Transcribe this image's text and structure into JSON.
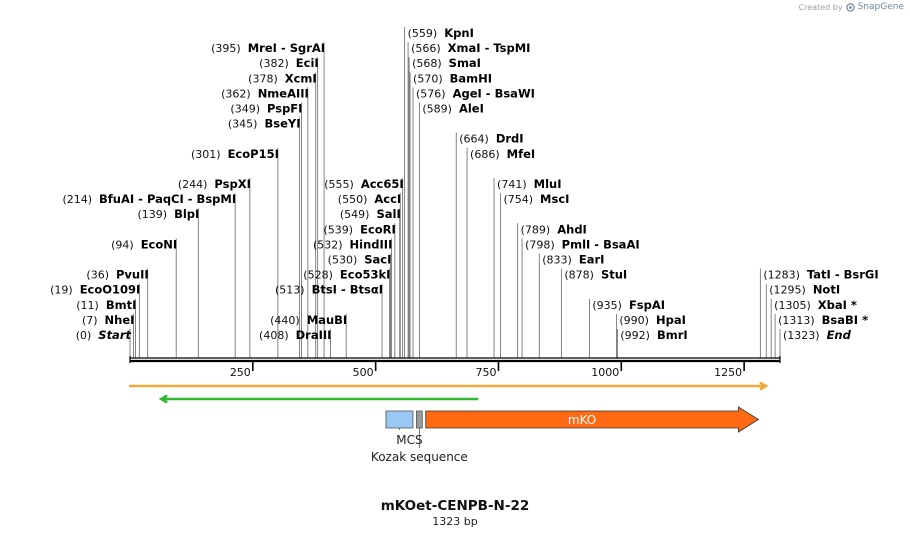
{
  "header": {
    "credit_prefix": "Created by",
    "credit_brand": "SnapGene"
  },
  "sequence": {
    "name": "mKOet-CENPB-N-22",
    "length_label": "1323 bp",
    "length_bp": 1323
  },
  "ruler": {
    "ticks": [
      250,
      500,
      750,
      1000,
      1250
    ]
  },
  "enzymes": [
    {
      "row": 0,
      "align": "right",
      "pos": "(0)",
      "name": "Start",
      "italic": true,
      "site": 0
    },
    {
      "row": 1,
      "align": "right",
      "pos": "(7)",
      "name": "NheI",
      "site": 7
    },
    {
      "row": 2,
      "align": "right",
      "pos": "(11)",
      "name": "BmtI",
      "site": 11
    },
    {
      "row": 3,
      "align": "right",
      "pos": "(19)",
      "name": "EcoO109I",
      "site": 19
    },
    {
      "row": 4,
      "align": "right",
      "pos": "(36)",
      "name": "PvuII",
      "site": 36
    },
    {
      "row": 6,
      "align": "right",
      "pos": "(94)",
      "name": "EcoNI",
      "site": 94
    },
    {
      "row": 8,
      "align": "right",
      "pos": "(139)",
      "name": "BlpI",
      "site": 139
    },
    {
      "row": 9,
      "align": "right",
      "pos": "(214)",
      "name": "BfuAI - PaqCI - BspMI",
      "site": 214
    },
    {
      "row": 10,
      "align": "right",
      "pos": "(244)",
      "name": "PspXI",
      "site": 244
    },
    {
      "row": 12,
      "align": "right",
      "pos": "(301)",
      "name": "EcoP15I",
      "site": 301
    },
    {
      "row": 0,
      "align": "right",
      "pos": "(408)",
      "name": "DraIII",
      "site": 408
    },
    {
      "row": 1,
      "align": "right",
      "pos": "(440)",
      "name": "MauBI",
      "site": 440
    },
    {
      "row": 3,
      "align": "right",
      "pos": "(513)",
      "name": "BtsI - BtsαI",
      "site": 513
    },
    {
      "row": 4,
      "align": "right",
      "pos": "(528)",
      "name": "Eco53kI",
      "site": 528
    },
    {
      "row": 5,
      "align": "right",
      "pos": "(530)",
      "name": "SacI",
      "site": 530
    },
    {
      "row": 6,
      "align": "right",
      "pos": "(532)",
      "name": "HindIII",
      "site": 532
    },
    {
      "row": 7,
      "align": "right",
      "pos": "(539)",
      "name": "EcoRI",
      "site": 539
    },
    {
      "row": 8,
      "align": "right",
      "pos": "(549)",
      "name": "SalI",
      "site": 549
    },
    {
      "row": 9,
      "align": "right",
      "pos": "(550)",
      "name": "AccI",
      "site": 550
    },
    {
      "row": 10,
      "align": "right",
      "pos": "(555)",
      "name": "Acc65I",
      "site": 555
    },
    {
      "row": 14,
      "align": "right",
      "pos": "(345)",
      "name": "BseYI",
      "site": 345
    },
    {
      "row": 15,
      "align": "right",
      "pos": "(349)",
      "name": "PspFI",
      "site": 349
    },
    {
      "row": 16,
      "align": "right",
      "pos": "(362)",
      "name": "NmeAIII",
      "site": 362
    },
    {
      "row": 17,
      "align": "right",
      "pos": "(378)",
      "name": "XcmI",
      "site": 378
    },
    {
      "row": 18,
      "align": "right",
      "pos": "(382)",
      "name": "EciI",
      "site": 382
    },
    {
      "row": 19,
      "align": "right",
      "pos": "(395)",
      "name": "MreI - SgrAI",
      "site": 395
    },
    {
      "row": 20,
      "align": "left",
      "pos": "(559)",
      "name": "KpnI",
      "site": 559
    },
    {
      "row": 19,
      "align": "left",
      "pos": "(566)",
      "name": "XmaI - TspMI",
      "site": 566
    },
    {
      "row": 18,
      "align": "left",
      "pos": "(568)",
      "name": "SmaI",
      "site": 568
    },
    {
      "row": 17,
      "align": "left",
      "pos": "(570)",
      "name": "BamHI",
      "site": 570
    },
    {
      "row": 16,
      "align": "left",
      "pos": "(576)",
      "name": "AgeI - BsaWI",
      "site": 576
    },
    {
      "row": 15,
      "align": "left",
      "pos": "(589)",
      "name": "AleI",
      "site": 589
    },
    {
      "row": 13,
      "align": "left",
      "pos": "(664)",
      "name": "DrdI",
      "site": 664
    },
    {
      "row": 12,
      "align": "left",
      "pos": "(686)",
      "name": "MfeI",
      "site": 686
    },
    {
      "row": 10,
      "align": "left",
      "pos": "(741)",
      "name": "MluI",
      "site": 741
    },
    {
      "row": 9,
      "align": "left",
      "pos": "(754)",
      "name": "MscI",
      "site": 754
    },
    {
      "row": 7,
      "align": "left",
      "pos": "(789)",
      "name": "AhdI",
      "site": 789
    },
    {
      "row": 6,
      "align": "left",
      "pos": "(798)",
      "name": "PmlI - BsaAI",
      "site": 798
    },
    {
      "row": 5,
      "align": "left",
      "pos": "(833)",
      "name": "EarI",
      "site": 833
    },
    {
      "row": 4,
      "align": "left",
      "pos": "(878)",
      "name": "StuI",
      "site": 878
    },
    {
      "row": 2,
      "align": "left",
      "pos": "(935)",
      "name": "FspAI",
      "site": 935
    },
    {
      "row": 1,
      "align": "left",
      "pos": "(990)",
      "name": "HpaI",
      "site": 990
    },
    {
      "row": 0,
      "align": "left",
      "pos": "(992)",
      "name": "BmrI",
      "site": 992
    },
    {
      "row": 4,
      "align": "left",
      "pos": "(1283)",
      "name": "TatI - BsrGI",
      "site": 1283
    },
    {
      "row": 3,
      "align": "left",
      "pos": "(1295)",
      "name": "NotI",
      "site": 1295
    },
    {
      "row": 2,
      "align": "left",
      "pos": "(1305)",
      "name": "XbaI *",
      "site": 1305
    },
    {
      "row": 1,
      "align": "left",
      "pos": "(1313)",
      "name": "BsaBI *",
      "site": 1313
    },
    {
      "row": 0,
      "align": "left",
      "pos": "(1323)",
      "name": "End",
      "italic": true,
      "site": 1323
    }
  ],
  "features": {
    "mcs": {
      "label": "MCS",
      "start": 525,
      "end": 580,
      "color": "#99c8f2"
    },
    "kozak": {
      "label": "Kozak sequence",
      "start": 585,
      "end": 597,
      "color": "#9a9a9a"
    },
    "mko": {
      "label": "mKO",
      "start": 606,
      "end": 1275,
      "color": "#ff6a13"
    },
    "orf_reverse": {
      "start": 90,
      "end": 725,
      "color": "#2fb82f"
    },
    "orf_forward": {
      "start": 0,
      "end": 1323,
      "color": "#f0a93a"
    }
  }
}
